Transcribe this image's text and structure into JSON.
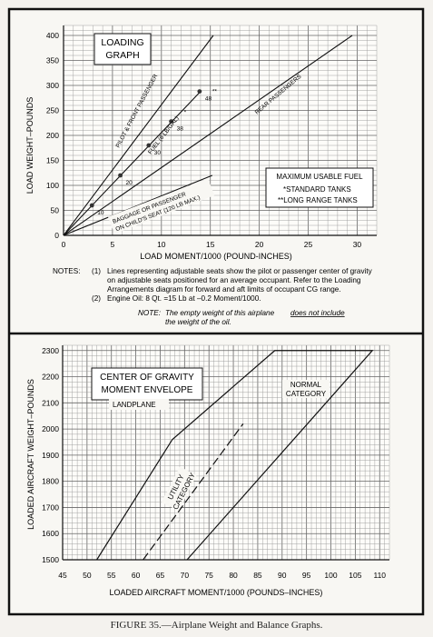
{
  "chart_data": [
    {
      "type": "line",
      "title": "LOADING GRAPH",
      "title_lines": [
        "LOADING",
        "GRAPH"
      ],
      "xlabel": "LOAD MOMENT/1000 (POUND-INCHES)",
      "ylabel": "LOAD WEIGHT–POUNDS",
      "xlim": [
        0,
        32
      ],
      "ylim": [
        0,
        420
      ],
      "x_ticks": [
        "0",
        "5",
        "10",
        "15",
        "20",
        "25",
        "30"
      ],
      "y_ticks": [
        "0",
        "50",
        "100",
        "150",
        "200",
        "250",
        "300",
        "350",
        "400"
      ],
      "grid": true,
      "series": [
        {
          "name": "PILOT & FRONT PASSENGER",
          "x": [
            0,
            15.3
          ],
          "y": [
            0,
            400
          ]
        },
        {
          "name": "FUEL (6 LB/GAL)",
          "x": [
            0,
            14.0
          ],
          "y": [
            0,
            288
          ]
        },
        {
          "name": "REAR PASSENGERS",
          "x": [
            0,
            29.5
          ],
          "y": [
            0,
            400
          ]
        },
        {
          "name": "BAGGAGE OR PASSENGER ON CHILD'S SEAT (120 LB MAX.)",
          "x": [
            0,
            15.2
          ],
          "y": [
            0,
            120
          ]
        }
      ],
      "fuel_gallons": [
        {
          "label": "10",
          "x": 2.9,
          "y": 60
        },
        {
          "label": "20",
          "x": 5.8,
          "y": 120
        },
        {
          "label": "30",
          "x": 8.7,
          "y": 180
        },
        {
          "label": "38",
          "x": 11.0,
          "y": 228
        },
        {
          "label": "48",
          "x": 13.9,
          "y": 288
        }
      ],
      "fuel_markers": [
        "*",
        "**"
      ],
      "legend": {
        "title": "MAXIMUM USABLE FUEL",
        "items": [
          "*STANDARD TANKS",
          "**LONG RANGE TANKS"
        ],
        "placement": "lower-right"
      },
      "notes": {
        "label": "NOTES:",
        "items": [
          {
            "num": "(1)",
            "lines": [
              "Lines representing adjustable seats show the pilot or passenger center of gravity",
              "on adjustable seats positioned for an average occupant. Refer to the Loading",
              "Arrangements diagram for forward and aft limits of occupant CG range."
            ]
          },
          {
            "num": "(2)",
            "lines": [
              "Engine Oil: 8 Qt. =15 Lb at –0.2 Moment/1000."
            ]
          }
        ],
        "note_label": "NOTE:",
        "note_text": "The empty weight of this airplane",
        "note_underlined": "does not include",
        "note_line2": "the weight of the oil."
      }
    },
    {
      "type": "line",
      "title": "CENTER OF GRAVITY MOMENT ENVELOPE",
      "title_lines": [
        "CENTER OF GRAVITY",
        "MOMENT ENVELOPE"
      ],
      "subtitle": "LANDPLANE",
      "xlabel": "LOADED AIRCRAFT MOMENT/1000 (POUNDS–INCHES)",
      "ylabel": "LOADED AIRCRAFT WEIGHT–POUNDS",
      "xlim": [
        45,
        112
      ],
      "ylim": [
        1500,
        2320
      ],
      "x_ticks": [
        "45",
        "50",
        "55",
        "60",
        "65",
        "70",
        "75",
        "80",
        "85",
        "90",
        "95",
        "100",
        "105",
        "110"
      ],
      "y_ticks": [
        "1500",
        "1600",
        "1700",
        "1800",
        "1900",
        "2000",
        "2100",
        "2200",
        "2300"
      ],
      "grid": true,
      "series": [
        {
          "name": "NORMAL CATEGORY",
          "x": [
            52,
            67.5,
            88.5,
            108.5,
            70.5
          ],
          "y": [
            1500,
            1960,
            2300,
            2300,
            1500
          ]
        },
        {
          "name": "UTILITY CATEGORY",
          "x": [
            61.5,
            82
          ],
          "y": [
            1500,
            2020
          ]
        }
      ],
      "region_labels": [
        "NORMAL",
        "CATEGORY",
        "UTILITY",
        "CATEGORY"
      ]
    }
  ],
  "caption": "FIGURE 35.—Airplane Weight and Balance Graphs."
}
